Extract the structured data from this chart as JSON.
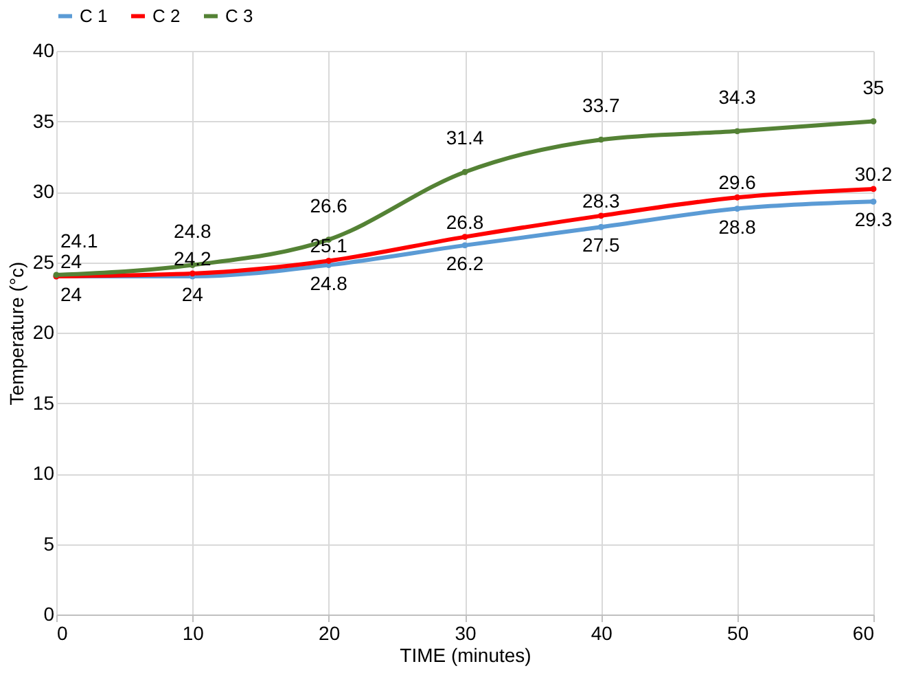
{
  "chart_data": {
    "type": "line",
    "xlabel": "TIME (minutes)",
    "ylabel": "Temperature (°c)",
    "x": [
      0,
      10,
      20,
      30,
      40,
      50,
      60
    ],
    "series": [
      {
        "name": "C 1",
        "color": "#5b9bd5",
        "values": [
          24,
          24,
          24.8,
          26.2,
          27.5,
          28.8,
          29.3
        ]
      },
      {
        "name": "C 2",
        "color": "#ff0000",
        "values": [
          24,
          24.2,
          25.1,
          26.8,
          28.3,
          29.6,
          30.2
        ]
      },
      {
        "name": "C 3",
        "color": "#548235",
        "values": [
          24.1,
          24.8,
          26.6,
          31.4,
          33.7,
          34.3,
          35
        ]
      }
    ],
    "xlim": [
      0,
      60
    ],
    "xticks": [
      0,
      10,
      20,
      30,
      40,
      50,
      60
    ],
    "ylim": [
      0,
      40
    ],
    "yticks": [
      0,
      5,
      10,
      15,
      20,
      25,
      30,
      35,
      40
    ],
    "grid": true,
    "legend": "top",
    "marker": "circle",
    "line_style": "solid",
    "data_labels": true
  }
}
